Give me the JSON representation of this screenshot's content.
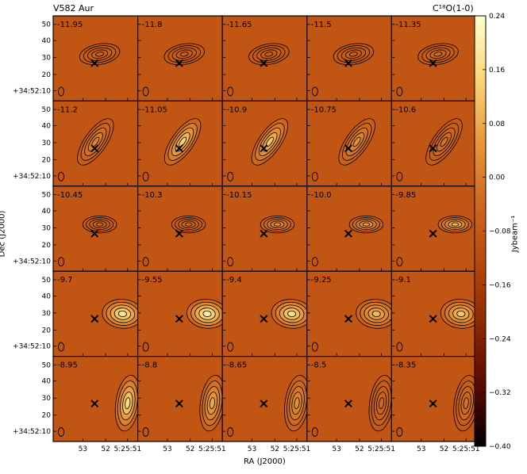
{
  "chart_data": {
    "type": "heatmap",
    "title_left": "V582 Aur",
    "title_right": "C¹⁸O(1-0)",
    "xlabel": "RA (J2000)",
    "ylabel": "Dec (J2000)",
    "x_tick_labels": [
      "53",
      "52",
      "5:25:51"
    ],
    "y_tick_labels": [
      "50",
      "40",
      "30",
      "20",
      "+34:52:10"
    ],
    "colorbar": {
      "label": "Jybeam⁻¹",
      "min": -0.4,
      "max": 0.24,
      "ticks": [
        0.24,
        0.16,
        0.08,
        0.0,
        -0.08,
        -0.16,
        -0.24,
        -0.32,
        -0.4
      ],
      "tick_labels": [
        "0.24",
        "0.16",
        "0.08",
        "0.00",
        "−0.08",
        "−0.16",
        "−0.24",
        "−0.32",
        "−0.40"
      ]
    },
    "colormap": [
      "#000000",
      "#5a0a00",
      "#8b2a00",
      "#b8480c",
      "#cf6a20",
      "#e99a3f",
      "#fbd77a",
      "#ffffcc"
    ],
    "background_level": -0.09,
    "source_marker": "×",
    "grid_rows": 5,
    "grid_cols": 5,
    "panels": [
      {
        "velocity": "-11.95",
        "peak": -0.05
      },
      {
        "velocity": "-11.8",
        "peak": -0.06
      },
      {
        "velocity": "-11.65",
        "peak": -0.06
      },
      {
        "velocity": "-11.5",
        "peak": -0.06
      },
      {
        "velocity": "-11.35",
        "peak": -0.04
      },
      {
        "velocity": "-11.2",
        "peak": 0.02
      },
      {
        "velocity": "-11.05",
        "peak": 0.14
      },
      {
        "velocity": "-10.9",
        "peak": 0.12
      },
      {
        "velocity": "-10.75",
        "peak": 0.04
      },
      {
        "velocity": "-10.6",
        "peak": -0.02
      },
      {
        "velocity": "-10.45",
        "peak": -0.04
      },
      {
        "velocity": "-10.3",
        "peak": -0.03
      },
      {
        "velocity": "-10.15",
        "peak": 0.04
      },
      {
        "velocity": "-10.0",
        "peak": 0.06
      },
      {
        "velocity": "-9.85",
        "peak": 0.1
      },
      {
        "velocity": "-9.7",
        "peak": 0.18
      },
      {
        "velocity": "-9.55",
        "peak": 0.2
      },
      {
        "velocity": "-9.4",
        "peak": 0.16
      },
      {
        "velocity": "-9.25",
        "peak": 0.1
      },
      {
        "velocity": "-9.1",
        "peak": 0.12
      },
      {
        "velocity": "-8.95",
        "peak": 0.16
      },
      {
        "velocity": "-8.8",
        "peak": 0.08
      },
      {
        "velocity": "-8.65",
        "peak": 0.04
      },
      {
        "velocity": "-8.5",
        "peak": -0.04
      },
      {
        "velocity": "-8.35",
        "peak": -0.02
      }
    ]
  }
}
